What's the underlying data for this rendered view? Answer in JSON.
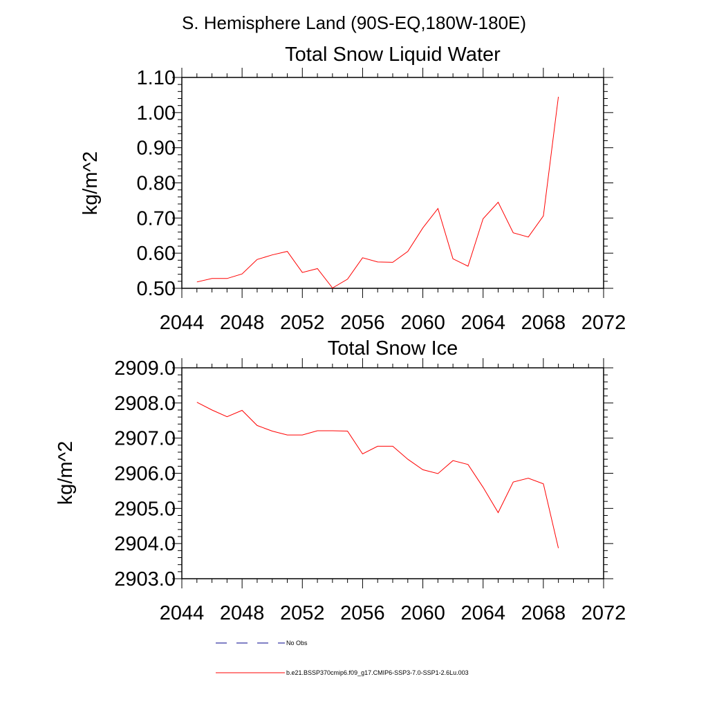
{
  "figure": {
    "suptitle": "S. Hemisphere Land (90S-EQ,180W-180E)"
  },
  "chart_data": [
    {
      "type": "line",
      "title": "Total Snow Liquid Water",
      "xlabel": "",
      "ylabel": "kg/m^2",
      "xlim": [
        2044,
        2072
      ],
      "ylim": [
        0.5,
        1.1
      ],
      "xticks": [
        "2044",
        "2048",
        "2052",
        "2056",
        "2060",
        "2064",
        "2068",
        "2072"
      ],
      "yticks": [
        "0.50",
        "0.60",
        "0.70",
        "0.80",
        "0.90",
        "1.00",
        "1.10"
      ],
      "x": [
        2045,
        2046,
        2047,
        2048,
        2049,
        2050,
        2051,
        2052,
        2053,
        2054,
        2055,
        2056,
        2057,
        2058,
        2059,
        2060,
        2061,
        2062,
        2063,
        2064,
        2065,
        2066,
        2067,
        2068,
        2069
      ],
      "series": [
        {
          "name": "b.e21.BSSP370cmip6.f09_g17.CMIP6-SSP3-7.0-SSP1-2.6Lu.003",
          "color": "#ff0000",
          "values": [
            0.518,
            0.528,
            0.528,
            0.541,
            0.582,
            0.595,
            0.605,
            0.545,
            0.556,
            0.501,
            0.526,
            0.587,
            0.575,
            0.574,
            0.605,
            0.672,
            0.727,
            0.584,
            0.563,
            0.698,
            0.745,
            0.658,
            0.646,
            0.706,
            1.045
          ]
        }
      ]
    },
    {
      "type": "line",
      "title": "Total Snow Ice",
      "xlabel": "",
      "ylabel": "kg/m^2",
      "xlim": [
        2044,
        2072
      ],
      "ylim": [
        2903.0,
        2909.0
      ],
      "xticks": [
        "2044",
        "2048",
        "2052",
        "2056",
        "2060",
        "2064",
        "2068",
        "2072"
      ],
      "yticks": [
        "2903.0",
        "2904.0",
        "2905.0",
        "2906.0",
        "2907.0",
        "2908.0",
        "2909.0"
      ],
      "x": [
        2045,
        2046,
        2047,
        2048,
        2049,
        2050,
        2051,
        2052,
        2053,
        2054,
        2055,
        2056,
        2057,
        2058,
        2059,
        2060,
        2061,
        2062,
        2063,
        2064,
        2065,
        2066,
        2067,
        2068,
        2069
      ],
      "series": [
        {
          "name": "b.e21.BSSP370cmip6.f09_g17.CMIP6-SSP3-7.0-SSP1-2.6Lu.003",
          "color": "#ff0000",
          "values": [
            2908.02,
            2907.8,
            2907.61,
            2907.79,
            2907.36,
            2907.2,
            2907.09,
            2907.09,
            2907.21,
            2907.21,
            2907.2,
            2906.55,
            2906.77,
            2906.77,
            2906.4,
            2906.1,
            2905.99,
            2906.36,
            2906.25,
            2905.6,
            2904.88,
            2905.75,
            2905.86,
            2905.7,
            2903.87
          ]
        }
      ]
    }
  ],
  "legend": [
    {
      "label": "No Obs",
      "style": "dashed",
      "color": "#00008b"
    },
    {
      "label": "b.e21.BSSP370cmip6.f09_g17.CMIP6-SSP3-7.0-SSP1-2.6Lu.003",
      "style": "solid",
      "color": "#ff0000"
    }
  ]
}
